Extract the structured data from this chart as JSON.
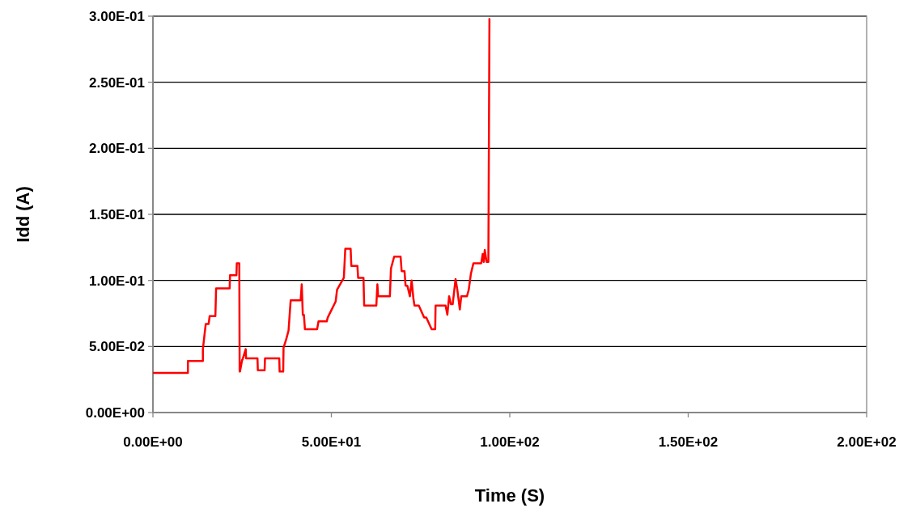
{
  "chart_data": {
    "type": "line",
    "xlabel": "Time (S)",
    "ylabel": "Idd (A)",
    "xlim": [
      0,
      200
    ],
    "ylim": [
      0,
      0.3
    ],
    "xticks": [
      {
        "value": 0,
        "label": "0.00E+00"
      },
      {
        "value": 50,
        "label": "5.00E+01"
      },
      {
        "value": 100,
        "label": "1.00E+02"
      },
      {
        "value": 150,
        "label": "1.50E+02"
      },
      {
        "value": 200,
        "label": "2.00E+02"
      }
    ],
    "yticks": [
      {
        "value": 0,
        "label": "0.00E+00"
      },
      {
        "value": 0.05,
        "label": "5.00E-02"
      },
      {
        "value": 0.1,
        "label": "1.00E-01"
      },
      {
        "value": 0.15,
        "label": "1.50E-01"
      },
      {
        "value": 0.2,
        "label": "2.00E-01"
      },
      {
        "value": 0.25,
        "label": "2.50E-01"
      },
      {
        "value": 0.3,
        "label": "3.00E-01"
      }
    ],
    "grid": "y",
    "marker": "none",
    "line_style": "solid",
    "series": [
      {
        "color": "#ff0000",
        "x": [
          0,
          9.8,
          9.8,
          14,
          14,
          14.5,
          14.8,
          15.6,
          15.9,
          17.5,
          17.7,
          21.5,
          21.6,
          23.4,
          23.5,
          24.2,
          24.3,
          24.4,
          25,
          25.1,
          26,
          26.1,
          27,
          27.1,
          29.3,
          29.4,
          31.3,
          31.4,
          35.4,
          35.5,
          36.5,
          36.6,
          37.3,
          38,
          38.6,
          41.4,
          41.7,
          42,
          42.3,
          42.6,
          43,
          46,
          46.4,
          48.7,
          49,
          51.2,
          51.6,
          53.5,
          53.9,
          55.4,
          55.6,
          57.3,
          57.5,
          59,
          59.2,
          62.6,
          62.9,
          63.1,
          66.4,
          66.7,
          67.6,
          69.4,
          69.7,
          70.5,
          70.8,
          71.3,
          72,
          72.5,
          73,
          73.3,
          74.5,
          76,
          76.6,
          78.1,
          79.1,
          79.2,
          82,
          82.5,
          83,
          83.5,
          84,
          84.8,
          85.3,
          86,
          86.4,
          87.5,
          88,
          88.5,
          89.1,
          89.8,
          92,
          92.4,
          92.7,
          93,
          93.5,
          94,
          94.3,
          94.4
        ],
        "values": [
          0.03,
          0.03,
          0.039,
          0.039,
          0.048,
          0.06,
          0.067,
          0.067,
          0.073,
          0.073,
          0.094,
          0.094,
          0.104,
          0.104,
          0.113,
          0.113,
          0.031,
          0.031,
          0.04,
          0.04,
          0.048,
          0.041,
          0.041,
          0.041,
          0.041,
          0.032,
          0.032,
          0.041,
          0.041,
          0.031,
          0.031,
          0.049,
          0.055,
          0.062,
          0.085,
          0.085,
          0.097,
          0.074,
          0.074,
          0.063,
          0.063,
          0.063,
          0.069,
          0.069,
          0.072,
          0.084,
          0.093,
          0.102,
          0.124,
          0.124,
          0.111,
          0.111,
          0.102,
          0.102,
          0.081,
          0.081,
          0.097,
          0.088,
          0.088,
          0.109,
          0.118,
          0.118,
          0.107,
          0.107,
          0.096,
          0.096,
          0.088,
          0.1,
          0.086,
          0.081,
          0.081,
          0.072,
          0.072,
          0.063,
          0.063,
          0.081,
          0.081,
          0.074,
          0.088,
          0.082,
          0.082,
          0.101,
          0.093,
          0.078,
          0.088,
          0.088,
          0.088,
          0.093,
          0.105,
          0.113,
          0.113,
          0.12,
          0.114,
          0.123,
          0.114,
          0.114,
          0.298,
          0.298
        ]
      }
    ]
  }
}
